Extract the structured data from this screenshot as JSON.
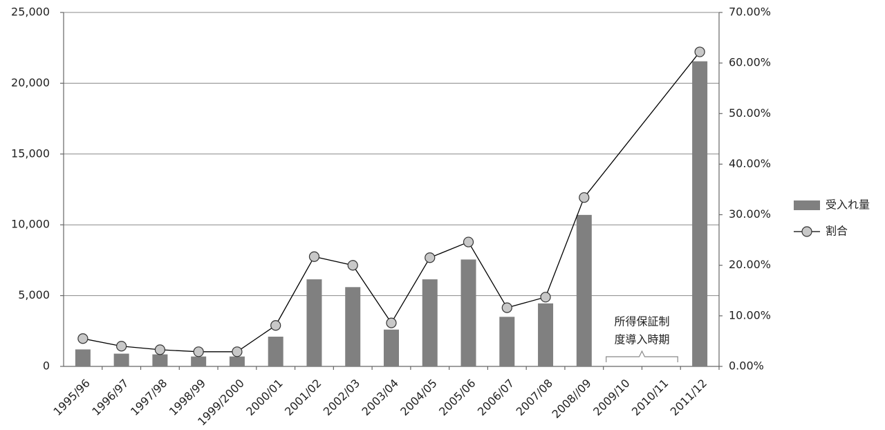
{
  "chart_data": {
    "type": "bar_line",
    "categories": [
      "1995/96",
      "1996/97",
      "1997/98",
      "1998/99",
      "1999/2000",
      "2000/01",
      "2001/02",
      "2002/03",
      "2003/04",
      "2004/05",
      "2005/06",
      "2006/07",
      "2007/08",
      "2008//09",
      "2009/10",
      "2010/11",
      "2011/12"
    ],
    "series": [
      {
        "name": "受入れ量",
        "type": "bar",
        "color": "#808080",
        "values": [
          1200,
          900,
          850,
          700,
          700,
          2100,
          6150,
          5600,
          2600,
          6150,
          7550,
          3500,
          4450,
          10700,
          null,
          null,
          21550
        ]
      },
      {
        "name": "割合",
        "type": "line",
        "axis": "y2",
        "color": "#000000",
        "marker_color": "#c8c8c8",
        "values": [
          5.5,
          4.0,
          3.3,
          2.9,
          2.9,
          8.1,
          21.7,
          20.0,
          8.6,
          21.5,
          24.6,
          11.6,
          13.7,
          33.4,
          null,
          null,
          62.2
        ]
      }
    ],
    "ylim": [
      0,
      25000
    ],
    "yticks": [
      0,
      {
        "value": 5000,
        "label": "5,000"
      },
      {
        "value": 10000,
        "label": "10,000"
      },
      {
        "value": 15000,
        "label": "15,000"
      },
      {
        "value": 20000,
        "label": "20,000"
      },
      {
        "value": 25000,
        "label": "25,000"
      }
    ],
    "y2lim": [
      0,
      70
    ],
    "y2ticks": [
      {
        "value": 0,
        "label": "0.00%"
      },
      {
        "value": 10,
        "label": "10.00%"
      },
      {
        "value": 20,
        "label": "20.00%"
      },
      {
        "value": 30,
        "label": "30.00%"
      },
      {
        "value": 40,
        "label": "40.00%"
      },
      {
        "value": 50,
        "label": "50.00%"
      },
      {
        "value": 60,
        "label": "60.00%"
      },
      {
        "value": 70,
        "label": "70.00%"
      }
    ],
    "grid": true,
    "legend": "right",
    "annotation": [
      "所得保証制",
      "度導入時期"
    ]
  }
}
